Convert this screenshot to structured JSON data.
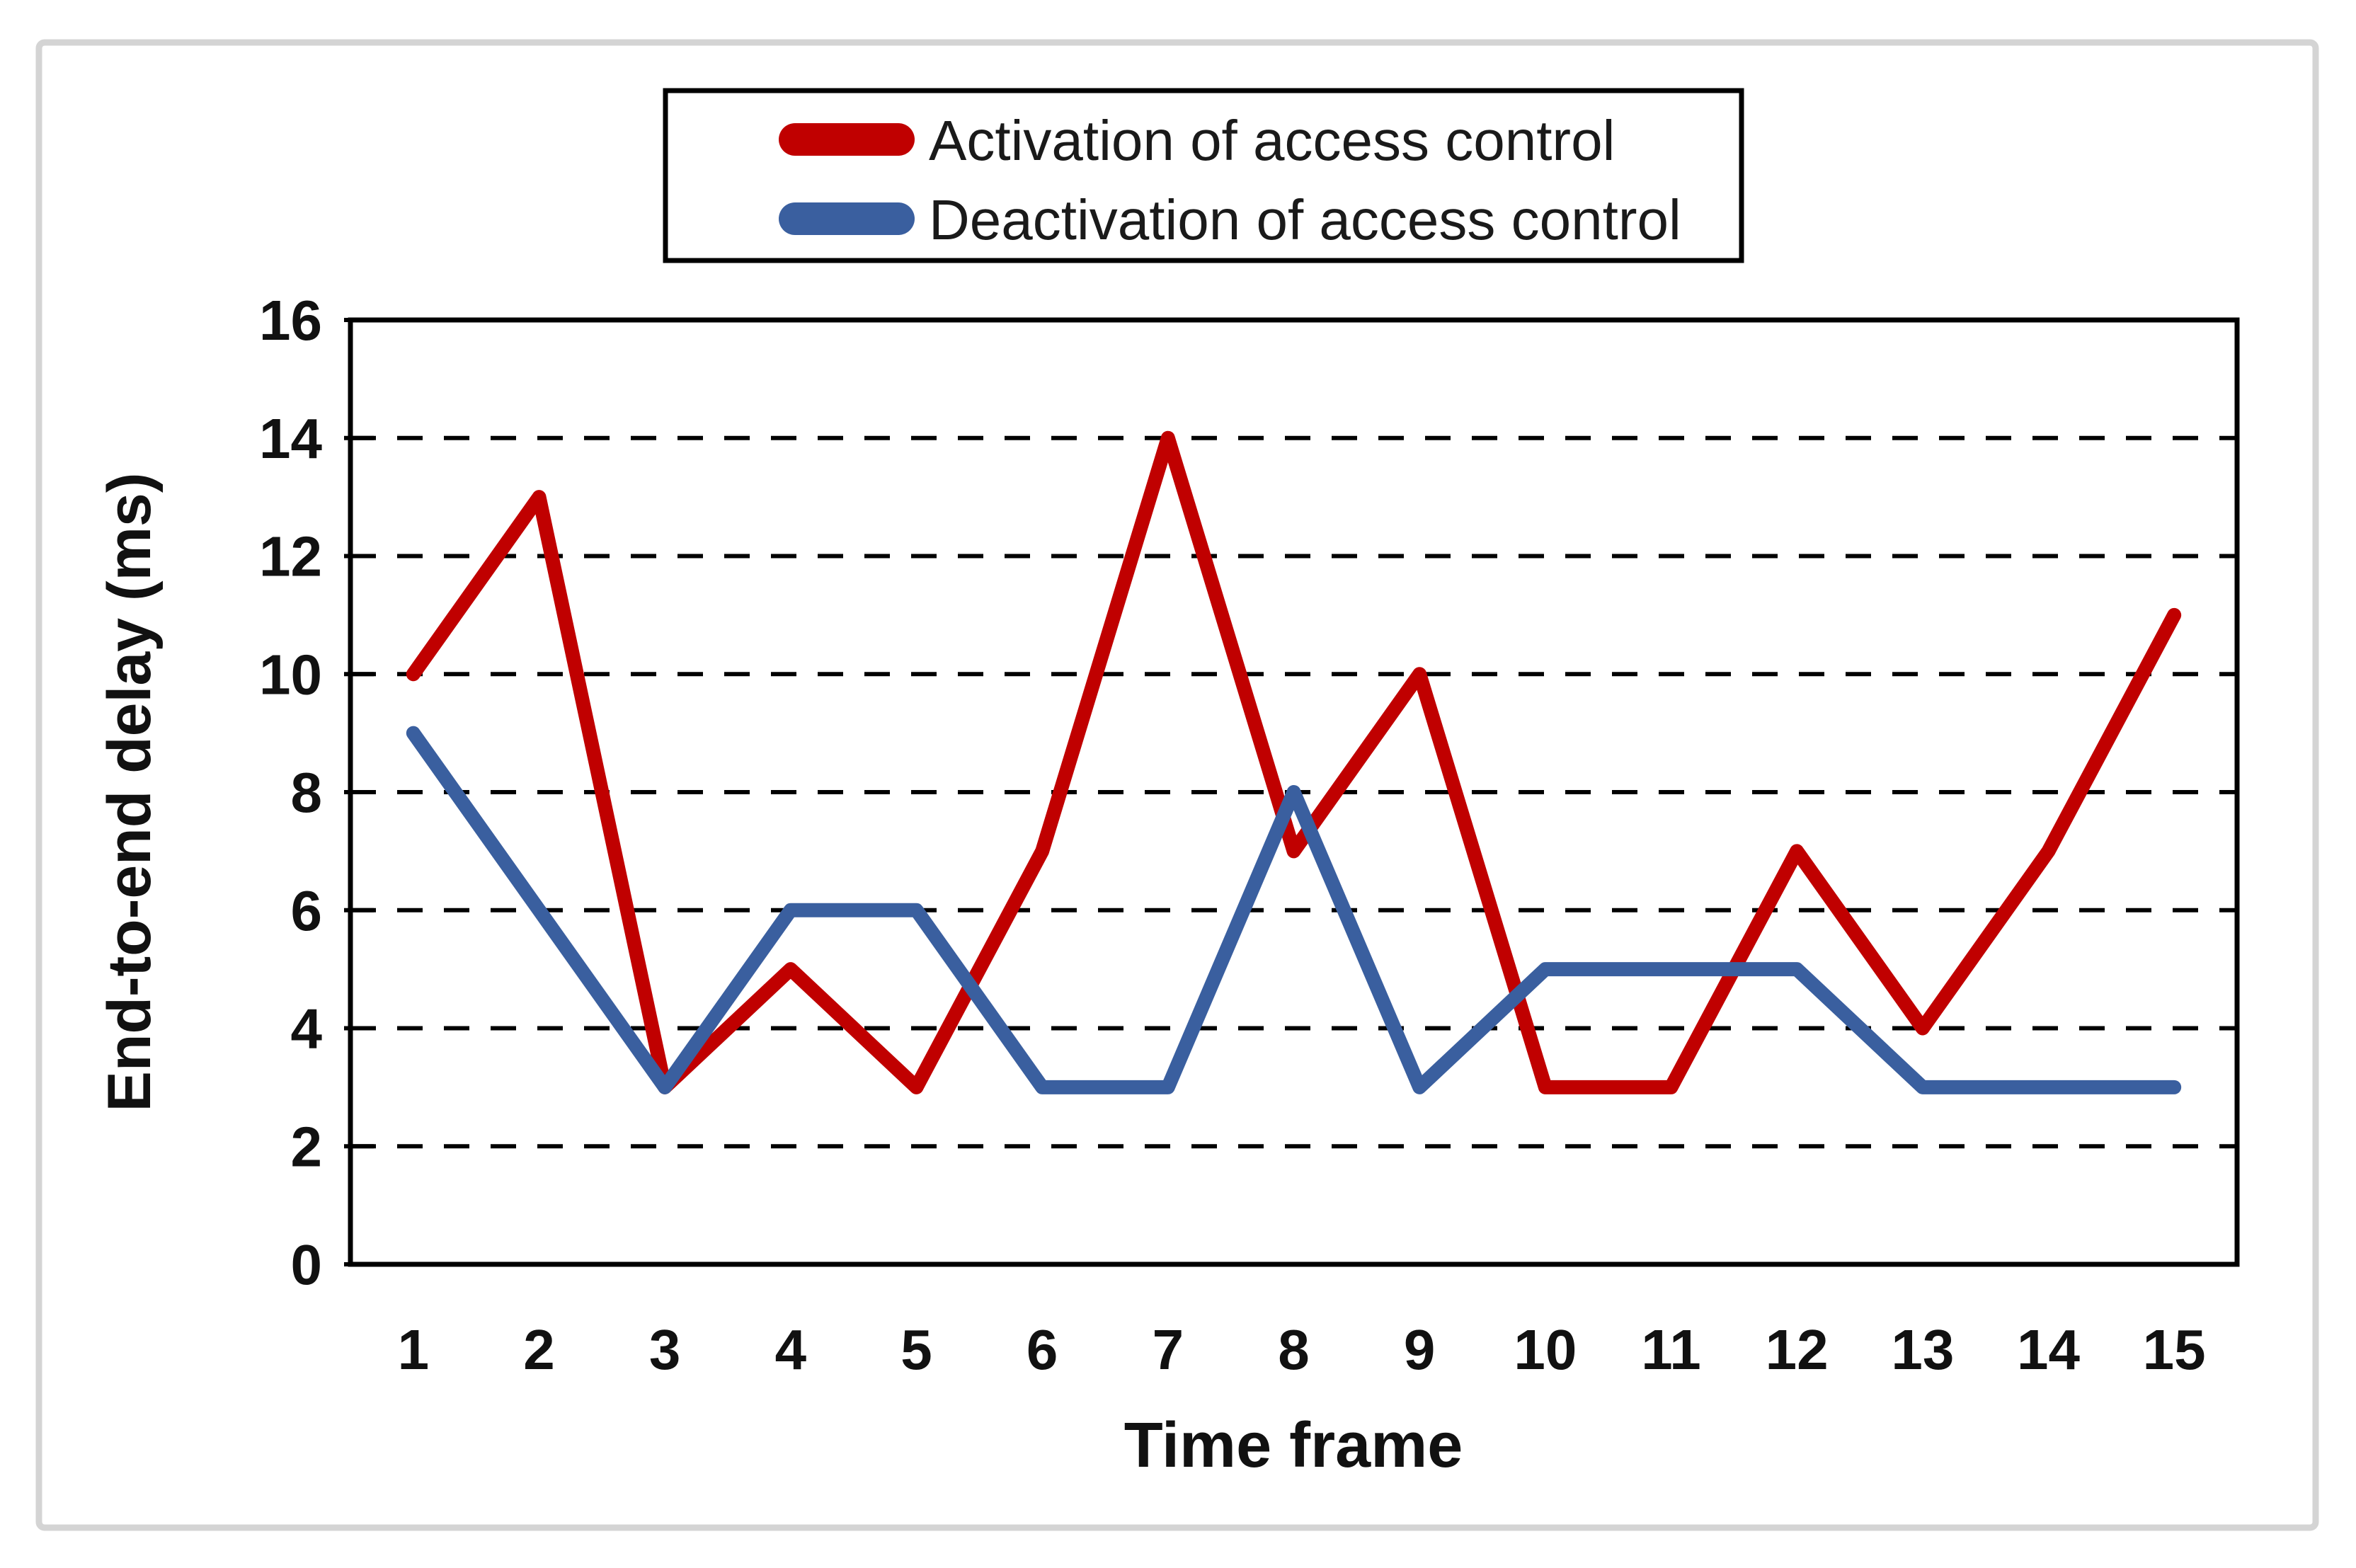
{
  "figure": {
    "background": "#FFFFFF",
    "frame_border_color": "#D4D4D4"
  },
  "legend": {
    "position": "top",
    "entries": [
      {
        "label": "Activation of access control",
        "color": "#C00000"
      },
      {
        "label": "Deactivation of access control",
        "color": "#3A5F9F"
      }
    ]
  },
  "chart_data": {
    "type": "line",
    "title": "",
    "xlabel": "Time frame",
    "ylabel": "End-to-end delay (ms)",
    "x": [
      1,
      2,
      3,
      4,
      5,
      6,
      7,
      8,
      9,
      10,
      11,
      12,
      13,
      14,
      15
    ],
    "series": [
      {
        "name": "Activation of access control",
        "color": "#C00000",
        "values": [
          10,
          13,
          3,
          5,
          3,
          7,
          14,
          7,
          10,
          3,
          3,
          7,
          4,
          7,
          11
        ]
      },
      {
        "name": "Deactivation of access control",
        "color": "#3A5F9F",
        "values": [
          9,
          6,
          3,
          6,
          6,
          3,
          3,
          8,
          3,
          5,
          5,
          5,
          3,
          3,
          3
        ]
      }
    ],
    "ylim": [
      0,
      16
    ],
    "yticks": [
      0,
      2,
      4,
      6,
      8,
      10,
      12,
      14,
      16
    ],
    "grid": {
      "horizontal": true,
      "vertical": false,
      "style": "dashed"
    },
    "legend_position": "top-center",
    "axis_color": "#000000",
    "gridline_color": "#000000"
  }
}
